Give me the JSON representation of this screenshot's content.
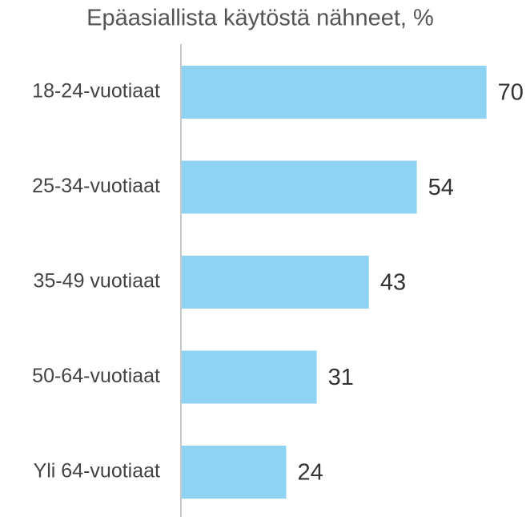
{
  "chart_data": {
    "type": "hbar",
    "title": "Epäasiallista käytöstä nähneet, %",
    "categories": [
      "18-24-vuotiaat",
      "25-34-vuotiaat",
      "35-49 vuotiaat",
      "50-64-vuotiaat",
      "Yli 64-vuotiaat"
    ],
    "values": [
      70,
      54,
      43,
      31,
      24
    ],
    "color": "#8fd3f4",
    "xlim": [
      0,
      80
    ]
  }
}
